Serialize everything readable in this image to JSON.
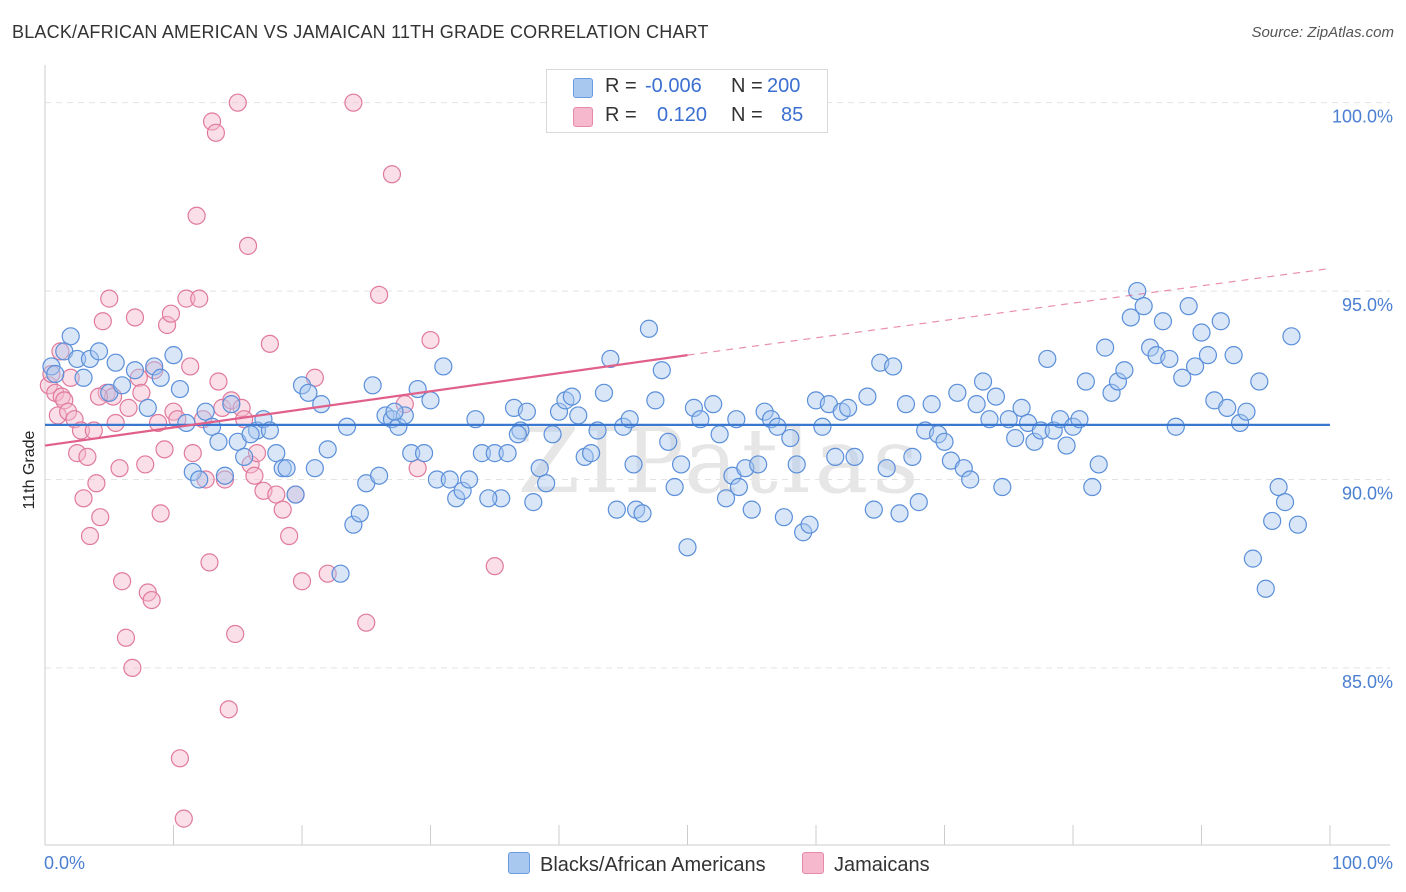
{
  "title": "BLACK/AFRICAN AMERICAN VS JAMAICAN 11TH GRADE CORRELATION CHART",
  "source": "Source: ZipAtlas.com",
  "watermark": "ZIPatlas",
  "legend": {
    "rows": [
      {
        "r_label": "R =",
        "r_value": "-0.006",
        "n_label": "N =",
        "n_value": "200",
        "color": "#a8c8f0"
      },
      {
        "r_label": "R =",
        "r_value": "0.120",
        "n_label": "N =",
        "n_value": "85",
        "color": "#f5b8cc"
      }
    ]
  },
  "bottom_legend": [
    {
      "label": "Blacks/African Americans",
      "color": "#a8c8f0"
    },
    {
      "label": "Jamaicans",
      "color": "#f5b8cc"
    }
  ],
  "chart_data": {
    "type": "scatter",
    "title": "BLACK/AFRICAN AMERICAN VS JAMAICAN 11TH GRADE CORRELATION CHART",
    "xlabel": "",
    "ylabel": "11th Grade",
    "xlim": [
      0,
      100
    ],
    "ylim": [
      80.3,
      101.0
    ],
    "x_tick_labels": [
      "0.0%",
      "100.0%"
    ],
    "y_ticks": [
      85,
      90,
      95,
      100
    ],
    "y_tick_labels": [
      "85.0%",
      "90.0%",
      "95.0%",
      "100.0%"
    ],
    "grid": true,
    "legend_position": "top-center",
    "series": [
      {
        "name": "Blacks/African Americans",
        "color": "#5b8fd9",
        "fill": "#a8c8f0",
        "trend": {
          "x": [
            0,
            100
          ],
          "y": [
            91.45,
            91.45
          ],
          "color": "#3a78cf"
        },
        "points": [
          [
            0.5,
            93.0
          ],
          [
            0.8,
            92.8
          ],
          [
            1.5,
            93.4
          ],
          [
            2.0,
            93.8
          ],
          [
            2.5,
            93.2
          ],
          [
            3.0,
            92.7
          ],
          [
            3.5,
            93.2
          ],
          [
            4.2,
            93.4
          ],
          [
            5.0,
            92.3
          ],
          [
            5.5,
            93.1
          ],
          [
            6.0,
            92.5
          ],
          [
            7.0,
            92.9
          ],
          [
            8.0,
            91.9
          ],
          [
            8.5,
            93.0
          ],
          [
            9.0,
            92.7
          ],
          [
            10.0,
            93.3
          ],
          [
            10.5,
            92.4
          ],
          [
            11.0,
            91.5
          ],
          [
            11.5,
            90.2
          ],
          [
            12.5,
            91.8
          ],
          [
            13.0,
            91.4
          ],
          [
            14.0,
            90.1
          ],
          [
            14.5,
            92.0
          ],
          [
            15.0,
            91.0
          ],
          [
            15.5,
            90.6
          ],
          [
            16.5,
            91.3
          ],
          [
            17.0,
            91.6
          ],
          [
            18.0,
            90.7
          ],
          [
            18.5,
            90.3
          ],
          [
            19.5,
            89.6
          ],
          [
            20.0,
            92.5
          ],
          [
            20.5,
            92.3
          ],
          [
            21.0,
            90.3
          ],
          [
            21.5,
            92.0
          ],
          [
            22.0,
            90.8
          ],
          [
            23.0,
            87.5
          ],
          [
            23.5,
            91.4
          ],
          [
            24.0,
            88.8
          ],
          [
            24.5,
            89.1
          ],
          [
            25.0,
            89.9
          ],
          [
            25.5,
            92.5
          ],
          [
            26.0,
            90.1
          ],
          [
            26.5,
            91.7
          ],
          [
            27.0,
            91.6
          ],
          [
            27.5,
            91.4
          ],
          [
            28.0,
            91.7
          ],
          [
            28.5,
            90.7
          ],
          [
            29.0,
            92.4
          ],
          [
            29.5,
            90.7
          ],
          [
            30.0,
            92.1
          ],
          [
            30.5,
            90.0
          ],
          [
            31.0,
            93.0
          ],
          [
            31.5,
            90.0
          ],
          [
            32.0,
            89.5
          ],
          [
            32.5,
            89.7
          ],
          [
            33.0,
            90.0
          ],
          [
            33.5,
            91.6
          ],
          [
            34.0,
            90.7
          ],
          [
            35.0,
            90.7
          ],
          [
            35.5,
            89.5
          ],
          [
            36.0,
            90.7
          ],
          [
            36.5,
            91.9
          ],
          [
            37.0,
            91.3
          ],
          [
            37.5,
            91.8
          ],
          [
            38.0,
            89.4
          ],
          [
            38.5,
            90.3
          ],
          [
            39.0,
            89.9
          ],
          [
            39.5,
            91.2
          ],
          [
            40.0,
            91.8
          ],
          [
            40.5,
            92.1
          ],
          [
            41.0,
            92.2
          ],
          [
            42.0,
            90.6
          ],
          [
            42.5,
            90.7
          ],
          [
            43.0,
            91.3
          ],
          [
            43.5,
            92.3
          ],
          [
            44.0,
            93.2
          ],
          [
            44.5,
            89.2
          ],
          [
            45.0,
            91.4
          ],
          [
            45.5,
            91.6
          ],
          [
            46.0,
            89.2
          ],
          [
            46.5,
            89.1
          ],
          [
            47.0,
            94.0
          ],
          [
            47.5,
            92.1
          ],
          [
            48.0,
            92.9
          ],
          [
            48.5,
            91.0
          ],
          [
            49.0,
            89.8
          ],
          [
            49.5,
            90.4
          ],
          [
            50.0,
            88.2
          ],
          [
            50.5,
            91.9
          ],
          [
            51.0,
            91.6
          ],
          [
            52.0,
            92.0
          ],
          [
            52.5,
            91.2
          ],
          [
            53.0,
            89.5
          ],
          [
            53.5,
            90.1
          ],
          [
            54.0,
            89.8
          ],
          [
            54.5,
            90.3
          ],
          [
            55.0,
            89.2
          ],
          [
            55.5,
            90.4
          ],
          [
            56.0,
            91.8
          ],
          [
            56.5,
            91.6
          ],
          [
            57.0,
            91.4
          ],
          [
            57.5,
            89.0
          ],
          [
            58.0,
            91.1
          ],
          [
            58.5,
            90.4
          ],
          [
            59.0,
            88.6
          ],
          [
            59.5,
            88.8
          ],
          [
            60.0,
            92.1
          ],
          [
            60.5,
            91.4
          ],
          [
            61.0,
            92.0
          ],
          [
            61.5,
            90.6
          ],
          [
            62.0,
            91.8
          ],
          [
            62.5,
            91.9
          ],
          [
            63.0,
            90.6
          ],
          [
            64.0,
            92.2
          ],
          [
            64.5,
            89.2
          ],
          [
            65.0,
            93.1
          ],
          [
            65.5,
            90.3
          ],
          [
            66.0,
            93.0
          ],
          [
            66.5,
            89.1
          ],
          [
            67.0,
            92.0
          ],
          [
            67.5,
            90.6
          ],
          [
            68.0,
            89.4
          ],
          [
            68.5,
            91.3
          ],
          [
            69.0,
            92.0
          ],
          [
            69.5,
            91.2
          ],
          [
            70.0,
            91.0
          ],
          [
            70.5,
            90.5
          ],
          [
            71.0,
            92.3
          ],
          [
            71.5,
            90.3
          ],
          [
            72.0,
            90.0
          ],
          [
            72.5,
            92.0
          ],
          [
            73.0,
            92.6
          ],
          [
            73.5,
            91.6
          ],
          [
            74.0,
            92.2
          ],
          [
            74.5,
            89.8
          ],
          [
            75.0,
            91.6
          ],
          [
            75.5,
            91.1
          ],
          [
            76.0,
            91.9
          ],
          [
            76.5,
            91.5
          ],
          [
            77.0,
            91.0
          ],
          [
            77.5,
            91.3
          ],
          [
            78.0,
            93.2
          ],
          [
            78.5,
            91.3
          ],
          [
            79.0,
            91.6
          ],
          [
            79.5,
            90.9
          ],
          [
            80.0,
            91.4
          ],
          [
            80.5,
            91.6
          ],
          [
            81.0,
            92.6
          ],
          [
            81.5,
            89.8
          ],
          [
            82.0,
            90.4
          ],
          [
            82.5,
            93.5
          ],
          [
            83.0,
            92.3
          ],
          [
            83.5,
            92.6
          ],
          [
            84.0,
            92.9
          ],
          [
            84.5,
            94.3
          ],
          [
            85.0,
            95.0
          ],
          [
            85.5,
            94.6
          ],
          [
            86.0,
            93.5
          ],
          [
            86.5,
            93.3
          ],
          [
            87.0,
            94.2
          ],
          [
            87.5,
            93.2
          ],
          [
            88.0,
            91.4
          ],
          [
            88.5,
            92.7
          ],
          [
            89.0,
            94.6
          ],
          [
            89.5,
            93.0
          ],
          [
            90.0,
            93.9
          ],
          [
            90.5,
            93.3
          ],
          [
            91.0,
            92.1
          ],
          [
            91.5,
            94.2
          ],
          [
            92.0,
            91.9
          ],
          [
            92.5,
            93.3
          ],
          [
            93.0,
            91.5
          ],
          [
            93.5,
            91.8
          ],
          [
            94.0,
            87.9
          ],
          [
            94.5,
            92.6
          ],
          [
            95.0,
            87.1
          ],
          [
            95.5,
            88.9
          ],
          [
            96.0,
            89.8
          ],
          [
            96.5,
            89.4
          ],
          [
            97.0,
            93.8
          ],
          [
            97.5,
            88.8
          ],
          [
            12.0,
            90.0
          ],
          [
            13.5,
            91.0
          ],
          [
            16.0,
            91.2
          ],
          [
            17.5,
            91.3
          ],
          [
            18.8,
            90.3
          ],
          [
            27.2,
            91.8
          ],
          [
            34.5,
            89.5
          ],
          [
            36.8,
            91.2
          ],
          [
            41.5,
            91.7
          ],
          [
            45.8,
            90.4
          ],
          [
            53.8,
            91.6
          ]
        ]
      },
      {
        "name": "Jamaicans",
        "color": "#e07a9c",
        "fill": "#f5b8cc",
        "trend": {
          "x": [
            0,
            50
          ],
          "y": [
            90.9,
            93.3
          ],
          "color": "#e0608a",
          "extended_to": [
            100,
            95.6
          ]
        },
        "points": [
          [
            0.3,
            92.5
          ],
          [
            0.5,
            92.8
          ],
          [
            0.8,
            92.3
          ],
          [
            1.0,
            91.7
          ],
          [
            1.3,
            92.2
          ],
          [
            1.5,
            92.1
          ],
          [
            1.8,
            91.8
          ],
          [
            2.0,
            92.7
          ],
          [
            2.3,
            91.6
          ],
          [
            2.5,
            90.7
          ],
          [
            2.8,
            91.3
          ],
          [
            3.0,
            89.5
          ],
          [
            3.3,
            90.6
          ],
          [
            3.5,
            88.5
          ],
          [
            3.8,
            91.3
          ],
          [
            4.0,
            89.9
          ],
          [
            4.3,
            89.0
          ],
          [
            4.5,
            94.2
          ],
          [
            4.8,
            92.3
          ],
          [
            5.0,
            94.8
          ],
          [
            5.3,
            92.2
          ],
          [
            5.5,
            91.5
          ],
          [
            5.8,
            90.3
          ],
          [
            6.0,
            87.3
          ],
          [
            6.3,
            85.8
          ],
          [
            6.5,
            91.9
          ],
          [
            6.8,
            85.0
          ],
          [
            7.0,
            94.3
          ],
          [
            7.3,
            92.7
          ],
          [
            7.5,
            92.3
          ],
          [
            7.8,
            90.4
          ],
          [
            8.0,
            87.0
          ],
          [
            8.3,
            86.8
          ],
          [
            8.5,
            92.9
          ],
          [
            8.8,
            91.5
          ],
          [
            9.0,
            89.1
          ],
          [
            9.3,
            90.8
          ],
          [
            9.5,
            94.1
          ],
          [
            9.8,
            94.4
          ],
          [
            10.0,
            91.8
          ],
          [
            10.3,
            91.6
          ],
          [
            10.5,
            82.6
          ],
          [
            10.8,
            81.0
          ],
          [
            11.0,
            94.8
          ],
          [
            11.3,
            93.0
          ],
          [
            11.5,
            90.7
          ],
          [
            11.8,
            97.0
          ],
          [
            12.0,
            94.8
          ],
          [
            12.3,
            91.6
          ],
          [
            12.5,
            90.0
          ],
          [
            12.8,
            87.8
          ],
          [
            13.0,
            99.5
          ],
          [
            13.3,
            99.2
          ],
          [
            13.5,
            92.6
          ],
          [
            13.8,
            91.9
          ],
          [
            14.0,
            90.0
          ],
          [
            14.3,
            83.9
          ],
          [
            14.5,
            92.1
          ],
          [
            14.8,
            85.9
          ],
          [
            15.0,
            100.0
          ],
          [
            15.3,
            91.9
          ],
          [
            15.5,
            91.6
          ],
          [
            15.8,
            96.2
          ],
          [
            16.0,
            90.4
          ],
          [
            16.3,
            90.1
          ],
          [
            16.5,
            90.7
          ],
          [
            17.0,
            89.7
          ],
          [
            17.5,
            93.6
          ],
          [
            18.0,
            89.6
          ],
          [
            18.5,
            89.2
          ],
          [
            19.0,
            88.5
          ],
          [
            19.5,
            89.6
          ],
          [
            20.0,
            87.3
          ],
          [
            21.0,
            92.7
          ],
          [
            22.0,
            87.5
          ],
          [
            24.0,
            100.0
          ],
          [
            25.0,
            86.2
          ],
          [
            26.0,
            94.9
          ],
          [
            27.0,
            98.1
          ],
          [
            28.0,
            92.0
          ],
          [
            29.0,
            90.3
          ],
          [
            30.0,
            93.7
          ],
          [
            35.0,
            87.7
          ],
          [
            4.2,
            92.2
          ],
          [
            1.2,
            93.4
          ]
        ]
      }
    ]
  }
}
